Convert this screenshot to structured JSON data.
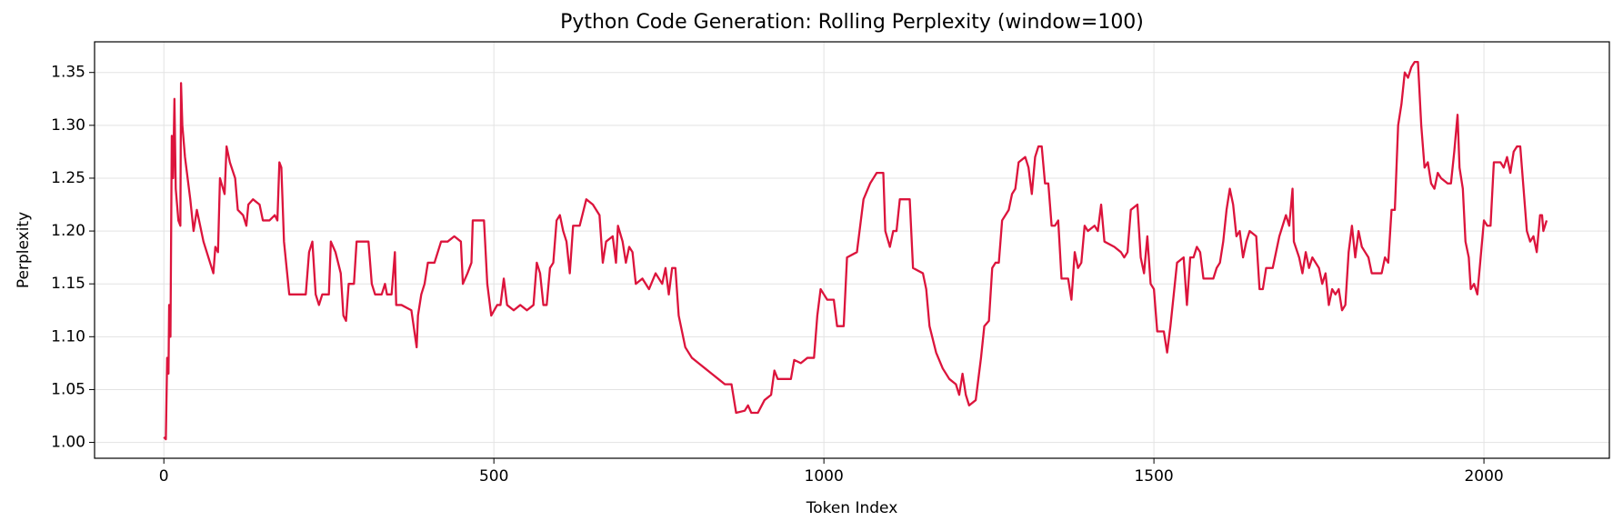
{
  "chart_data": {
    "type": "line",
    "title": "Python Code Generation: Rolling Perplexity (window=100)",
    "xlabel": "Token Index",
    "ylabel": "Perplexity",
    "xlim": [
      -105,
      2190
    ],
    "ylim": [
      0.985,
      1.379
    ],
    "xticks": [
      0,
      500,
      1000,
      1500,
      2000
    ],
    "yticks": [
      {
        "value": 1.0,
        "label": "1.00"
      },
      1.05,
      {
        "value": 1.1,
        "label": "1.10"
      },
      1.15,
      {
        "value": 1.2,
        "label": "1.20"
      },
      1.25,
      {
        "value": 1.3,
        "label": "1.30"
      },
      1.35
    ],
    "grid": true,
    "series": [
      {
        "color": "#dc143c",
        "x": [
          0,
          3,
          5,
          7,
          8,
          10,
          12,
          14,
          16,
          18,
          22,
          25,
          26,
          28,
          32,
          40,
          45,
          50,
          60,
          75,
          78,
          82,
          85,
          92,
          95,
          100,
          108,
          112,
          120,
          125,
          128,
          135,
          145,
          150,
          160,
          168,
          172,
          175,
          178,
          182,
          190,
          200,
          215,
          220,
          225,
          230,
          235,
          240,
          250,
          253,
          260,
          268,
          272,
          276,
          280,
          288,
          292,
          310,
          315,
          320,
          330,
          335,
          338,
          345,
          350,
          352,
          360,
          375,
          383,
          385,
          390,
          395,
          400,
          410,
          420,
          430,
          440,
          450,
          453,
          460,
          466,
          468,
          485,
          490,
          496,
          505,
          510,
          515,
          520,
          530,
          540,
          550,
          560,
          565,
          570,
          575,
          580,
          585,
          590,
          595,
          600,
          605,
          610,
          615,
          620,
          630,
          640,
          650,
          660,
          665,
          670,
          680,
          685,
          688,
          695,
          700,
          705,
          710,
          715,
          725,
          735,
          745,
          755,
          760,
          765,
          770,
          775,
          780,
          790,
          800,
          810,
          820,
          830,
          840,
          850,
          860,
          867,
          880,
          885,
          890,
          900,
          910,
          920,
          925,
          930,
          940,
          950,
          955,
          965,
          975,
          985,
          990,
          995,
          1000,
          1005,
          1015,
          1020,
          1030,
          1035,
          1050,
          1055,
          1060,
          1070,
          1075,
          1080,
          1090,
          1093,
          1100,
          1105,
          1110,
          1115,
          1130,
          1135,
          1150,
          1155,
          1160,
          1170,
          1180,
          1190,
          1200,
          1205,
          1210,
          1215,
          1220,
          1230,
          1238,
          1243,
          1250,
          1255,
          1260,
          1265,
          1270,
          1280,
          1285,
          1290,
          1295,
          1305,
          1310,
          1315,
          1320,
          1325,
          1330,
          1335,
          1340,
          1345,
          1350,
          1355,
          1360,
          1370,
          1375,
          1380,
          1385,
          1390,
          1395,
          1400,
          1410,
          1415,
          1420,
          1425,
          1440,
          1450,
          1455,
          1460,
          1465,
          1475,
          1480,
          1485,
          1490,
          1495,
          1500,
          1505,
          1515,
          1520,
          1525,
          1530,
          1535,
          1545,
          1550,
          1555,
          1560,
          1565,
          1570,
          1575,
          1590,
          1595,
          1600,
          1605,
          1610,
          1615,
          1620,
          1625,
          1630,
          1635,
          1640,
          1645,
          1655,
          1660,
          1665,
          1670,
          1680,
          1690,
          1695,
          1700,
          1705,
          1710,
          1712,
          1720,
          1725,
          1730,
          1735,
          1740,
          1750,
          1755,
          1760,
          1765,
          1770,
          1775,
          1780,
          1785,
          1790,
          1795,
          1800,
          1805,
          1810,
          1815,
          1820,
          1825,
          1830,
          1845,
          1850,
          1855,
          1860,
          1865,
          1870,
          1875,
          1880,
          1885,
          1890,
          1895,
          1900,
          1905,
          1910,
          1915,
          1920,
          1925,
          1930,
          1935,
          1945,
          1950,
          1955,
          1960,
          1963,
          1968,
          1972,
          1977,
          1980,
          1985,
          1990,
          1995,
          2000,
          2005,
          2010,
          2015,
          2025,
          2030,
          2035,
          2040,
          2045,
          2050,
          2055,
          2060,
          2065,
          2070,
          2075,
          2080,
          2085,
          2088,
          2090,
          2095
        ],
        "values": [
          1.005,
          1.003,
          1.08,
          1.065,
          1.13,
          1.1,
          1.29,
          1.25,
          1.325,
          1.24,
          1.21,
          1.205,
          1.34,
          1.3,
          1.27,
          1.23,
          1.2,
          1.22,
          1.19,
          1.16,
          1.185,
          1.18,
          1.25,
          1.235,
          1.28,
          1.265,
          1.25,
          1.22,
          1.215,
          1.205,
          1.225,
          1.23,
          1.225,
          1.21,
          1.21,
          1.215,
          1.21,
          1.265,
          1.26,
          1.19,
          1.14,
          1.14,
          1.14,
          1.18,
          1.19,
          1.14,
          1.13,
          1.14,
          1.14,
          1.19,
          1.18,
          1.16,
          1.12,
          1.115,
          1.15,
          1.15,
          1.19,
          1.19,
          1.15,
          1.14,
          1.14,
          1.15,
          1.14,
          1.14,
          1.18,
          1.13,
          1.13,
          1.125,
          1.09,
          1.12,
          1.14,
          1.15,
          1.17,
          1.17,
          1.19,
          1.19,
          1.195,
          1.19,
          1.15,
          1.16,
          1.17,
          1.21,
          1.21,
          1.15,
          1.12,
          1.13,
          1.13,
          1.155,
          1.13,
          1.125,
          1.13,
          1.125,
          1.13,
          1.17,
          1.16,
          1.13,
          1.13,
          1.165,
          1.17,
          1.21,
          1.215,
          1.2,
          1.19,
          1.16,
          1.205,
          1.205,
          1.23,
          1.225,
          1.215,
          1.17,
          1.19,
          1.195,
          1.17,
          1.205,
          1.19,
          1.17,
          1.185,
          1.18,
          1.15,
          1.155,
          1.145,
          1.16,
          1.15,
          1.165,
          1.14,
          1.165,
          1.165,
          1.12,
          1.09,
          1.08,
          1.075,
          1.07,
          1.065,
          1.06,
          1.055,
          1.055,
          1.028,
          1.03,
          1.035,
          1.028,
          1.028,
          1.04,
          1.045,
          1.068,
          1.06,
          1.06,
          1.06,
          1.078,
          1.075,
          1.08,
          1.08,
          1.12,
          1.145,
          1.14,
          1.135,
          1.135,
          1.11,
          1.11,
          1.175,
          1.18,
          1.205,
          1.23,
          1.245,
          1.25,
          1.255,
          1.255,
          1.2,
          1.185,
          1.2,
          1.2,
          1.23,
          1.23,
          1.165,
          1.16,
          1.145,
          1.11,
          1.085,
          1.07,
          1.06,
          1.055,
          1.045,
          1.065,
          1.045,
          1.035,
          1.04,
          1.08,
          1.11,
          1.115,
          1.165,
          1.17,
          1.17,
          1.21,
          1.22,
          1.235,
          1.24,
          1.265,
          1.27,
          1.26,
          1.235,
          1.27,
          1.28,
          1.28,
          1.245,
          1.245,
          1.205,
          1.205,
          1.21,
          1.155,
          1.155,
          1.135,
          1.18,
          1.165,
          1.17,
          1.205,
          1.2,
          1.205,
          1.2,
          1.225,
          1.19,
          1.185,
          1.18,
          1.175,
          1.18,
          1.22,
          1.225,
          1.175,
          1.16,
          1.195,
          1.15,
          1.145,
          1.105,
          1.105,
          1.085,
          1.11,
          1.14,
          1.17,
          1.175,
          1.13,
          1.175,
          1.175,
          1.185,
          1.18,
          1.155,
          1.155,
          1.165,
          1.17,
          1.19,
          1.22,
          1.24,
          1.225,
          1.195,
          1.2,
          1.175,
          1.19,
          1.2,
          1.195,
          1.145,
          1.145,
          1.165,
          1.165,
          1.195,
          1.205,
          1.215,
          1.205,
          1.24,
          1.19,
          1.175,
          1.16,
          1.18,
          1.165,
          1.175,
          1.165,
          1.15,
          1.16,
          1.13,
          1.145,
          1.14,
          1.145,
          1.125,
          1.13,
          1.18,
          1.205,
          1.175,
          1.2,
          1.185,
          1.18,
          1.175,
          1.16,
          1.16,
          1.175,
          1.17,
          1.22,
          1.22,
          1.3,
          1.32,
          1.35,
          1.345,
          1.355,
          1.36,
          1.36,
          1.3,
          1.26,
          1.265,
          1.245,
          1.24,
          1.255,
          1.25,
          1.245,
          1.245,
          1.275,
          1.31,
          1.26,
          1.24,
          1.19,
          1.175,
          1.145,
          1.15,
          1.14,
          1.175,
          1.21,
          1.205,
          1.205,
          1.265,
          1.265,
          1.26,
          1.27,
          1.255,
          1.275,
          1.28,
          1.28,
          1.24,
          1.2,
          1.19,
          1.195,
          1.18,
          1.215,
          1.215,
          1.2,
          1.21
        ]
      }
    ]
  }
}
